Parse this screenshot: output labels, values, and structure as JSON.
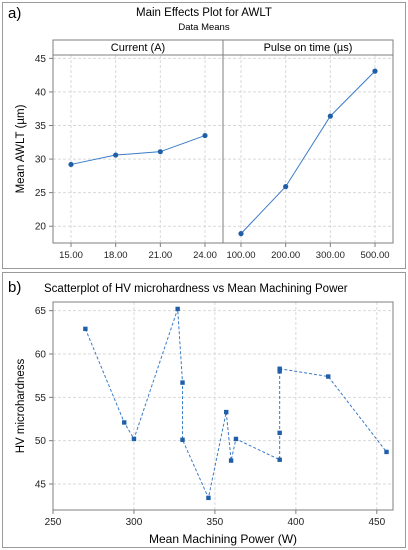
{
  "panels": {
    "a_label": "a)",
    "b_label": "b)"
  },
  "colors": {
    "series": "#1f5fa8",
    "line": "#3a7bc8",
    "grid": "#d9d9d9",
    "axis": "#7f7f7f"
  },
  "chart_data": [
    {
      "type": "line",
      "title": "Main Effects Plot for AWLT",
      "subtitle": "Data Means",
      "ylabel": "Mean AWLT (µm)",
      "ylim": [
        17.5,
        45.5
      ],
      "yticks": [
        20,
        25,
        30,
        35,
        40,
        45
      ],
      "grid": true,
      "facets": [
        {
          "header": "Current (A)",
          "categories": [
            "15.00",
            "18.00",
            "21.00",
            "24.00"
          ],
          "values": [
            29.2,
            30.6,
            31.1,
            33.5
          ]
        },
        {
          "header": "Pulse on time (µs)",
          "categories": [
            "100.00",
            "200.00",
            "300.00",
            "500.00"
          ],
          "values": [
            18.9,
            25.9,
            36.4,
            43.1
          ]
        }
      ]
    },
    {
      "type": "scatter",
      "title": "Scatterplot of HV microhardness vs Mean Machining Power",
      "xlabel": "Mean Machining Power (W)",
      "ylabel": "HV microhardness",
      "xlim": [
        250,
        460
      ],
      "ylim": [
        42,
        66
      ],
      "xticks": [
        250,
        300,
        350,
        400,
        450
      ],
      "yticks": [
        45,
        50,
        55,
        60,
        65
      ],
      "grid": true,
      "connected": true,
      "x": [
        270,
        294,
        300,
        327,
        330,
        330,
        346,
        357,
        360,
        363,
        390,
        390,
        390,
        390,
        420,
        456
      ],
      "y": [
        62.9,
        52.1,
        50.2,
        65.2,
        56.7,
        50.1,
        43.4,
        53.3,
        47.7,
        50.2,
        47.8,
        50.9,
        58.0,
        58.3,
        57.4,
        48.7
      ]
    }
  ]
}
